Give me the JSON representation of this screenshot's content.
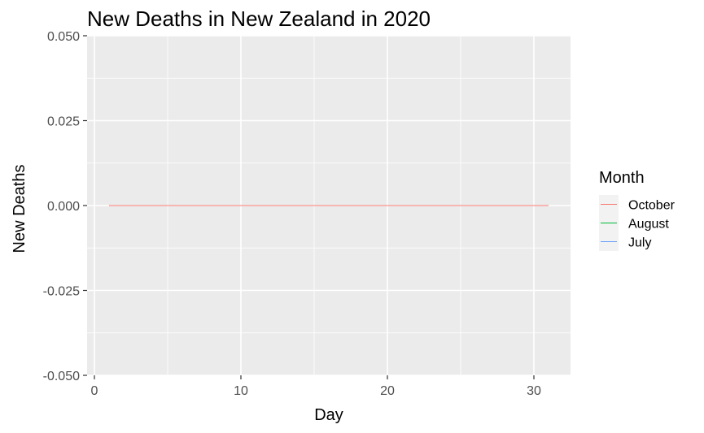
{
  "chart_data": {
    "type": "line",
    "title": "New Deaths in New Zealand in 2020",
    "xlabel": "Day",
    "ylabel": "New Deaths",
    "xlim": [
      -0.5,
      32.5
    ],
    "ylim": [
      -0.05,
      0.05
    ],
    "x_ticks": [
      0,
      10,
      20,
      30
    ],
    "x_tick_labels": [
      "0",
      "10",
      "20",
      "30"
    ],
    "y_ticks": [
      -0.05,
      -0.025,
      0,
      0.025,
      0.05
    ],
    "y_tick_labels": [
      "-0.050",
      "-0.025",
      "0.000",
      "0.025",
      "0.050"
    ],
    "grid": true,
    "panel_background": "#EBEBEB",
    "legend": {
      "title": "Month",
      "position": "right"
    },
    "series": [
      {
        "name": "October",
        "color": "#F8766D",
        "x": [
          1,
          2,
          3,
          4,
          5,
          6,
          7,
          8,
          9,
          10,
          11,
          12,
          13,
          14,
          15,
          16,
          17,
          18,
          19,
          20,
          21,
          22,
          23,
          24,
          25,
          26,
          27,
          28,
          29,
          30,
          31
        ],
        "values": [
          0,
          0,
          0,
          0,
          0,
          0,
          0,
          0,
          0,
          0,
          0,
          0,
          0,
          0,
          0,
          0,
          0,
          0,
          0,
          0,
          0,
          0,
          0,
          0,
          0,
          0,
          0,
          0,
          0,
          0,
          0
        ]
      },
      {
        "name": "August",
        "color": "#00BA38",
        "x": [
          1,
          2,
          3,
          4,
          5,
          6,
          7,
          8,
          9,
          10,
          11,
          12,
          13,
          14,
          15,
          16,
          17,
          18,
          19,
          20,
          21,
          22,
          23,
          24,
          25,
          26,
          27,
          28,
          29,
          30,
          31
        ],
        "values": [
          0,
          0,
          0,
          0,
          0,
          0,
          0,
          0,
          0,
          0,
          0,
          0,
          0,
          0,
          0,
          0,
          0,
          0,
          0,
          0,
          0,
          0,
          0,
          0,
          0,
          0,
          0,
          0,
          0,
          0,
          0
        ]
      },
      {
        "name": "July",
        "color": "#619CFF",
        "x": [
          1,
          2,
          3,
          4,
          5,
          6,
          7,
          8,
          9,
          10,
          11,
          12,
          13,
          14,
          15,
          16,
          17,
          18,
          19,
          20,
          21,
          22,
          23,
          24,
          25,
          26,
          27,
          28,
          29,
          30,
          31
        ],
        "values": [
          0,
          0,
          0,
          0,
          0,
          0,
          0,
          0,
          0,
          0,
          0,
          0,
          0,
          0,
          0,
          0,
          0,
          0,
          0,
          0,
          0,
          0,
          0,
          0,
          0,
          0,
          0,
          0,
          0,
          0,
          0
        ]
      }
    ]
  }
}
